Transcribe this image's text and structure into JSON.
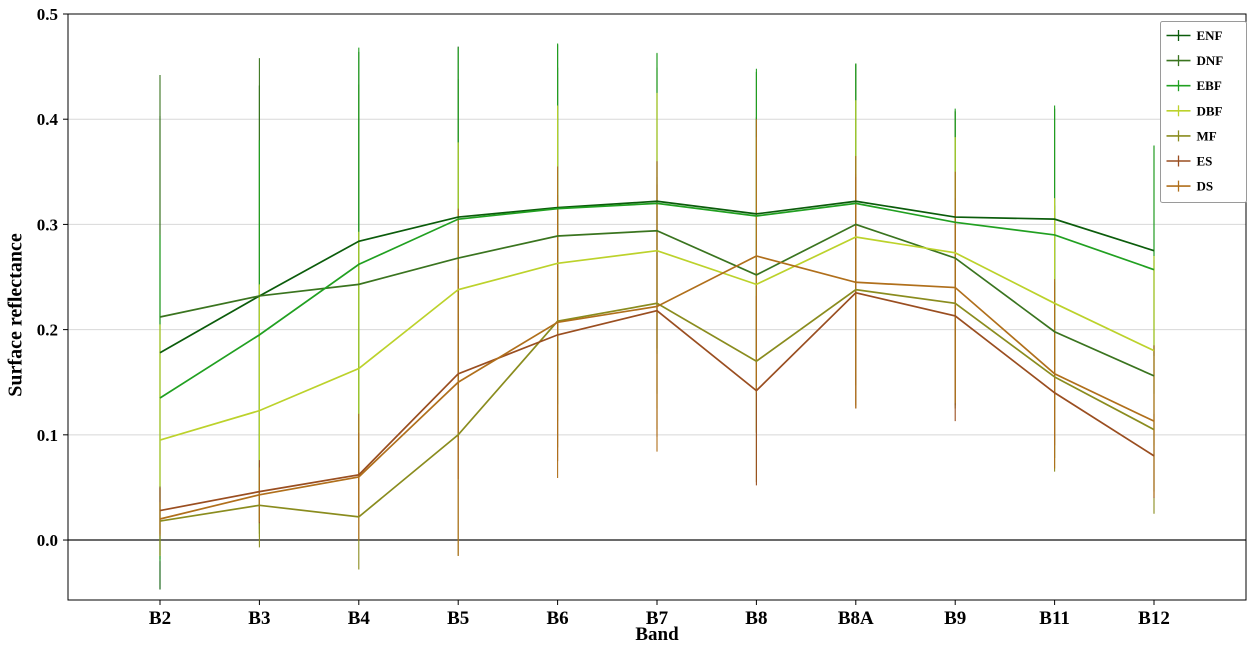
{
  "chart_data": {
    "type": "line",
    "title": "",
    "xlabel": "Band",
    "ylabel": "Surface reflectance",
    "categories": [
      "B2",
      "B3",
      "B4",
      "B5",
      "B6",
      "B7",
      "B8",
      "B8A",
      "B9",
      "B11",
      "B12"
    ],
    "ylim": [
      -0.057,
      0.5
    ],
    "yticks": [
      0,
      0.1,
      0.2,
      0.3,
      0.4,
      0.5
    ],
    "grid": true,
    "zero_line": true,
    "error_bars": true,
    "legend_position": "upper right",
    "series": [
      {
        "name": "ENF",
        "color": "#0b5c0b",
        "values": [
          0.178,
          0.232,
          0.284,
          0.307,
          0.316,
          0.322,
          0.31,
          0.322,
          0.307,
          0.305,
          0.275
        ],
        "err": [
          0.225,
          0.2,
          0.18,
          0.162,
          0.155,
          0.14,
          0.135,
          0.13,
          0.1,
          0.105,
          0.1
        ]
      },
      {
        "name": "DNF",
        "color": "#3a741f",
        "values": [
          0.212,
          0.232,
          0.243,
          0.268,
          0.289,
          0.294,
          0.252,
          0.3,
          0.268,
          0.198,
          0.156
        ],
        "err": [
          0.23,
          0.226,
          0.19,
          0.17,
          0.16,
          0.155,
          0.15,
          0.153,
          0.14,
          0.12,
          0.11
        ]
      },
      {
        "name": "EBF",
        "color": "#21a021",
        "values": [
          0.135,
          0.195,
          0.262,
          0.305,
          0.315,
          0.32,
          0.308,
          0.32,
          0.302,
          0.29,
          0.257
        ],
        "err": [
          0.155,
          0.185,
          0.206,
          0.163,
          0.157,
          0.143,
          0.14,
          0.133,
          0.108,
          0.123,
          0.118
        ]
      },
      {
        "name": "DBF",
        "color": "#bcd22b",
        "values": [
          0.095,
          0.123,
          0.163,
          0.238,
          0.263,
          0.275,
          0.243,
          0.288,
          0.273,
          0.225,
          0.18
        ],
        "err": [
          0.11,
          0.12,
          0.13,
          0.14,
          0.15,
          0.15,
          0.14,
          0.13,
          0.11,
          0.1,
          0.09
        ]
      },
      {
        "name": "MF",
        "color": "#8a8c1e",
        "values": [
          0.018,
          0.033,
          0.022,
          0.1,
          0.208,
          0.225,
          0.17,
          0.238,
          0.225,
          0.155,
          0.105
        ],
        "err": [
          0.033,
          0.04,
          0.05,
          0.115,
          0.12,
          0.12,
          0.115,
          0.11,
          0.1,
          0.09,
          0.08
        ]
      },
      {
        "name": "ES",
        "color": "#9a4e20",
        "values": [
          0.028,
          0.046,
          0.062,
          0.158,
          0.195,
          0.218,
          0.142,
          0.235,
          0.213,
          0.14,
          0.08
        ],
        "err": [
          0.022,
          0.03,
          0.04,
          0.1,
          0.12,
          0.12,
          0.09,
          0.11,
          0.1,
          0.05,
          0.04
        ]
      },
      {
        "name": "DS",
        "color": "#b06f1b",
        "values": [
          0.02,
          0.043,
          0.06,
          0.15,
          0.207,
          0.222,
          0.27,
          0.245,
          0.24,
          0.158,
          0.113
        ],
        "err": [
          0.016,
          0.026,
          0.06,
          0.165,
          0.148,
          0.138,
          0.13,
          0.12,
          0.11,
          0.09,
          0.072
        ]
      }
    ]
  }
}
